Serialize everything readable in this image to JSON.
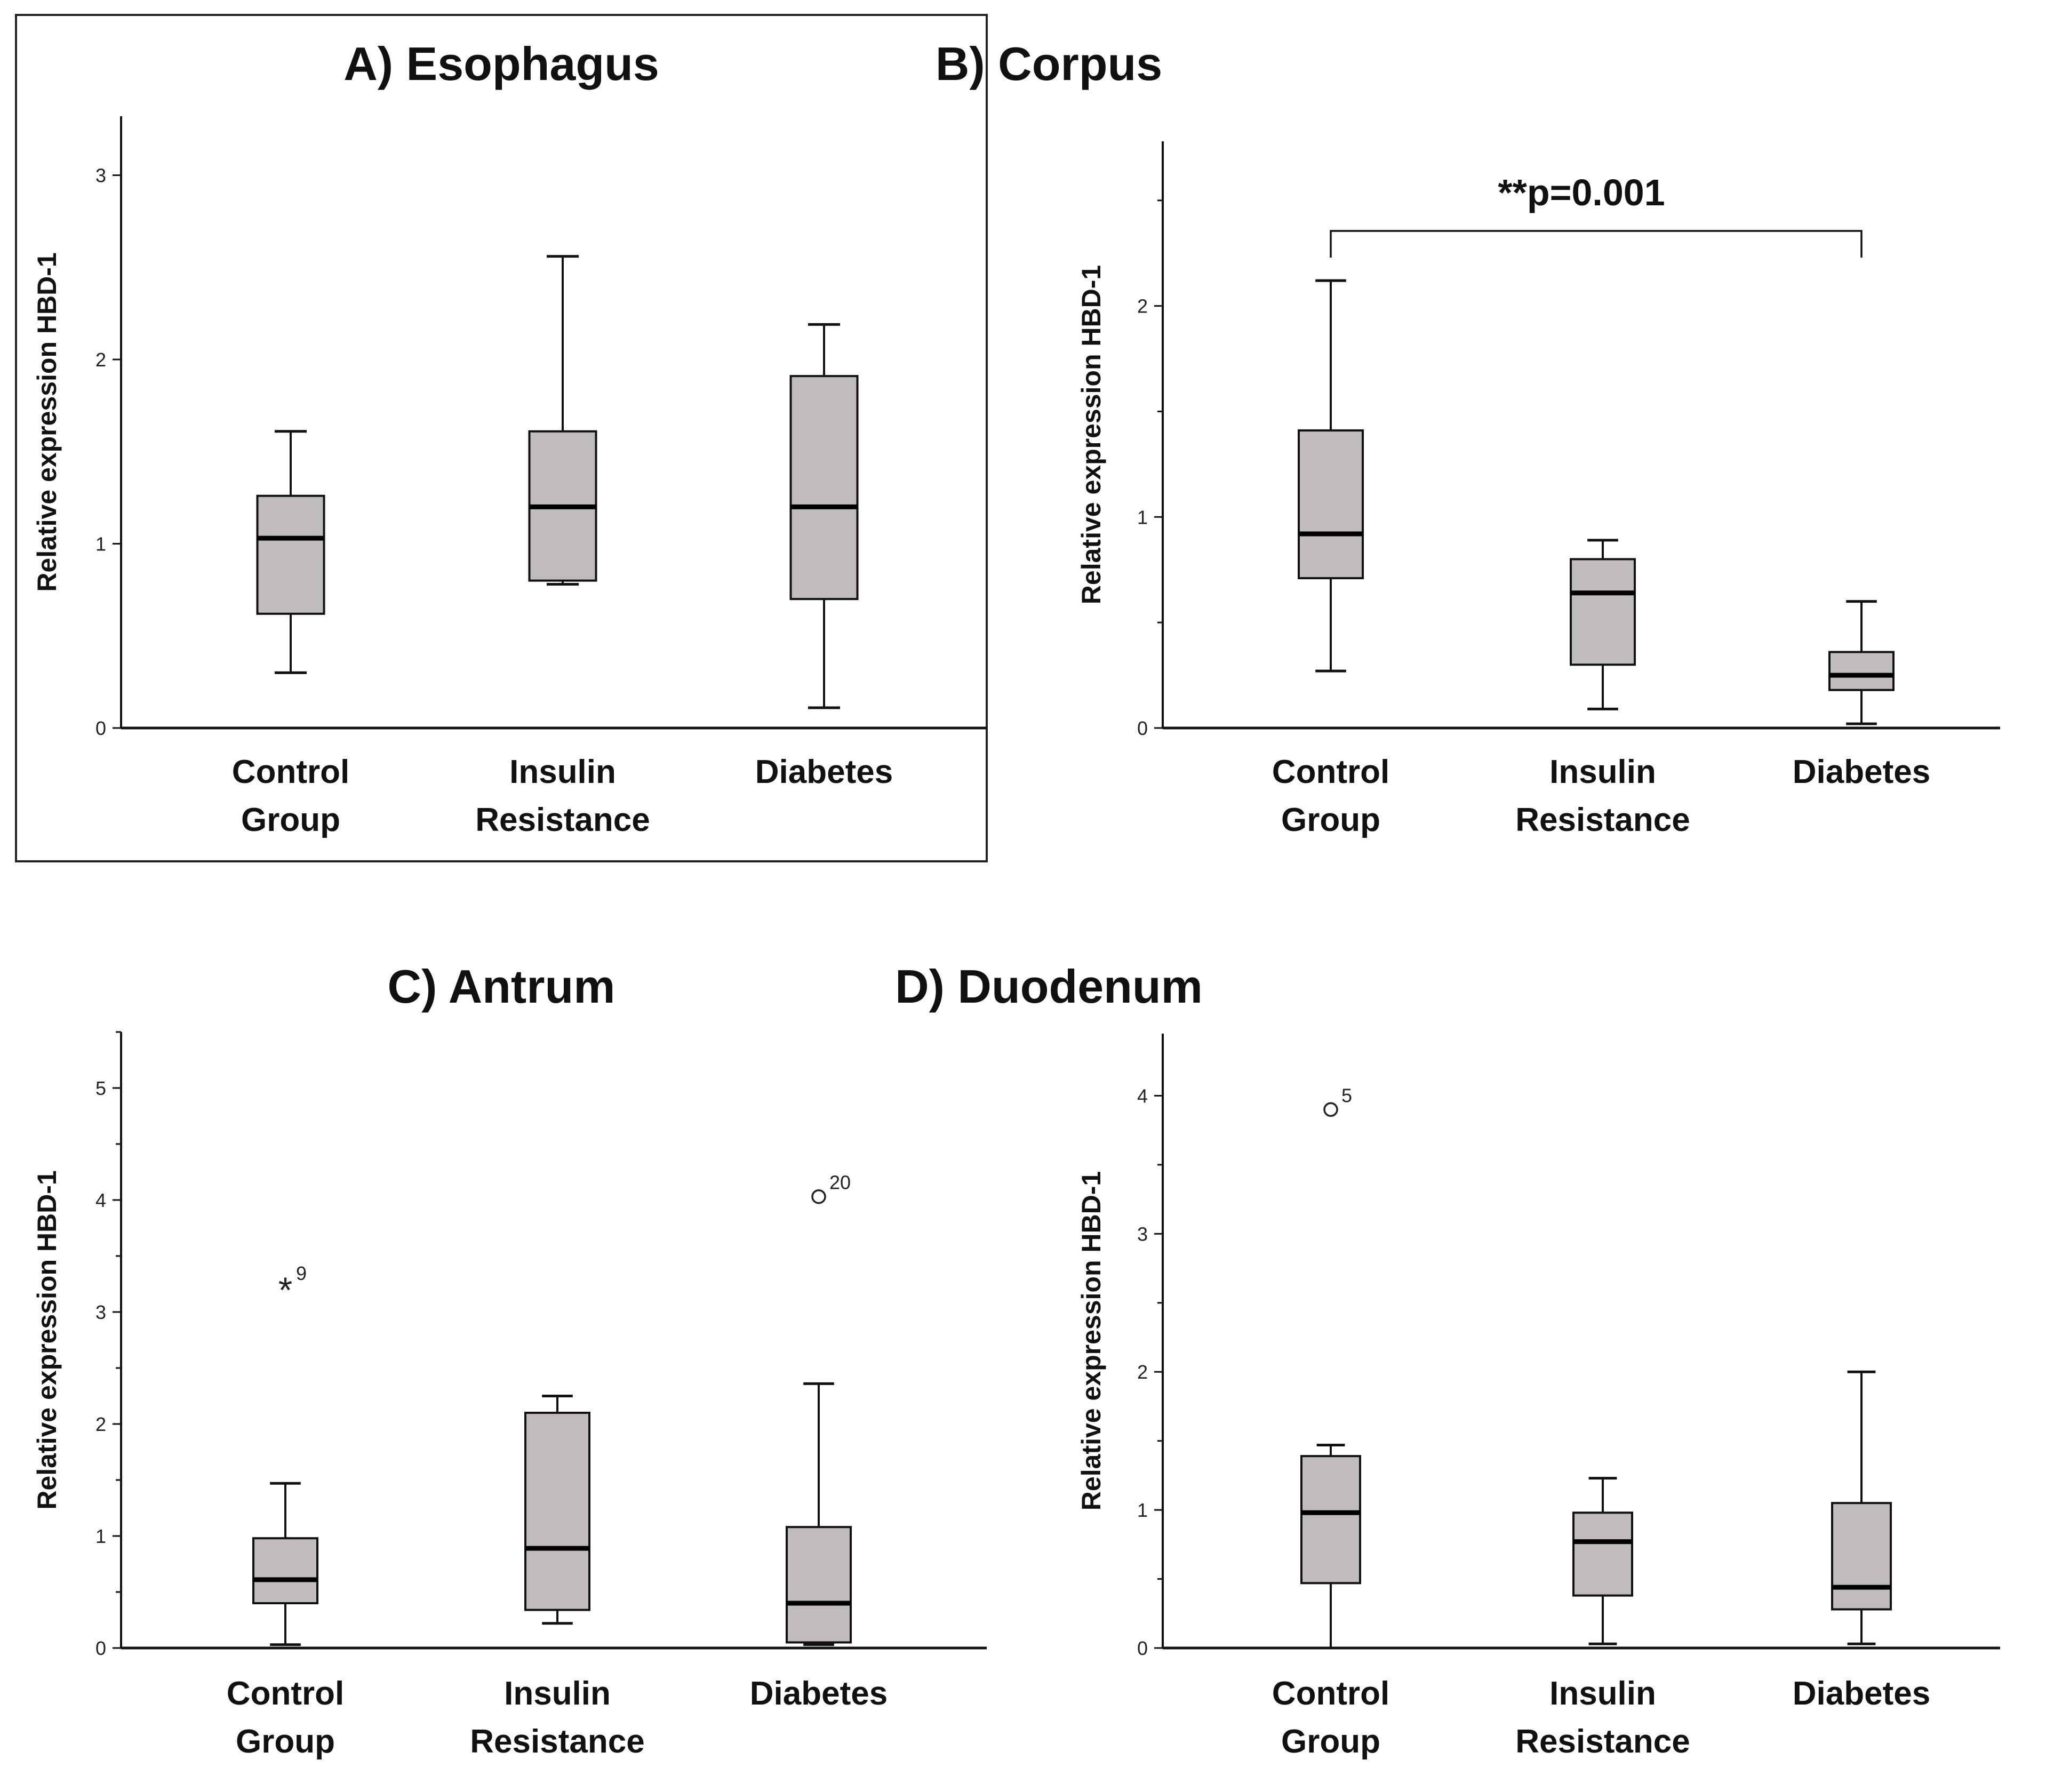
{
  "chart_data": [
    {
      "id": "A",
      "type": "boxplot",
      "title": "A)  Esophagus",
      "xlabel": "",
      "ylabel": "Relative expression HBD-1",
      "ylim": [
        0,
        3.32
      ],
      "yticks": [
        0,
        1,
        2,
        3
      ],
      "yticks_labeled": [
        0,
        1,
        2,
        3
      ],
      "categories": [
        [
          "Control",
          "Group"
        ],
        [
          "Insulin",
          "Resistance"
        ],
        [
          "Diabetes"
        ]
      ],
      "boxes": [
        {
          "whisker_low": 0.3,
          "q1": 0.62,
          "median": 1.03,
          "q3": 1.26,
          "whisker_high": 1.61,
          "outliers": []
        },
        {
          "whisker_low": 0.78,
          "q1": 0.8,
          "median": 1.2,
          "q3": 1.61,
          "whisker_high": 2.56,
          "outliers": []
        },
        {
          "whisker_low": 0.11,
          "q1": 0.7,
          "median": 1.2,
          "q3": 1.91,
          "whisker_high": 2.19,
          "outliers": []
        }
      ],
      "annotations": []
    },
    {
      "id": "B",
      "type": "boxplot",
      "title": "B)  Corpus",
      "xlabel": "",
      "ylabel": "Relative expression HBD-1",
      "ylim": [
        0,
        2.78
      ],
      "yticks": [
        0,
        0.5,
        1,
        1.5,
        2,
        2.5
      ],
      "yticks_labeled": [
        0,
        1,
        2
      ],
      "categories": [
        [
          "Control",
          "Group"
        ],
        [
          "Insulin",
          "Resistance"
        ],
        [
          "Diabetes"
        ]
      ],
      "boxes": [
        {
          "whisker_low": 0.27,
          "q1": 0.71,
          "median": 0.92,
          "q3": 1.41,
          "whisker_high": 2.12,
          "outliers": []
        },
        {
          "whisker_low": 0.09,
          "q1": 0.3,
          "median": 0.64,
          "q3": 0.8,
          "whisker_high": 0.89,
          "outliers": []
        },
        {
          "whisker_low": 0.02,
          "q1": 0.18,
          "median": 0.25,
          "q3": 0.36,
          "whisker_high": 0.6,
          "outliers": []
        }
      ],
      "annotations": [
        {
          "type": "bracket",
          "from": 0,
          "to": 2,
          "y": 2.35,
          "label": "**p=0.001"
        }
      ]
    },
    {
      "id": "C",
      "type": "boxplot",
      "title": "C)  Antrum",
      "xlabel": "",
      "ylabel": "Relative expression HBD-1",
      "ylim": [
        0,
        5.5
      ],
      "yticks": [
        0,
        0.5,
        1,
        1.5,
        2,
        2.5,
        3,
        3.5,
        4,
        4.5,
        5,
        5.5
      ],
      "yticks_labeled": [
        0,
        1,
        2,
        3,
        4,
        5
      ],
      "categories": [
        [
          "Control",
          "Group"
        ],
        [
          "Insulin",
          "Resistance"
        ],
        [
          "Diabetes"
        ]
      ],
      "boxes": [
        {
          "whisker_low": 0.03,
          "q1": 0.4,
          "median": 0.61,
          "q3": 0.98,
          "whisker_high": 1.47,
          "outliers": [
            {
              "value": 3.22,
              "marker": "star",
              "label": "9"
            }
          ]
        },
        {
          "whisker_low": 0.22,
          "q1": 0.34,
          "median": 0.89,
          "q3": 2.1,
          "whisker_high": 2.25,
          "outliers": []
        },
        {
          "whisker_low": 0.03,
          "q1": 0.05,
          "median": 0.4,
          "q3": 1.08,
          "whisker_high": 2.36,
          "outliers": [
            {
              "value": 4.03,
              "marker": "circle",
              "label": "20"
            }
          ]
        }
      ],
      "annotations": []
    },
    {
      "id": "D",
      "type": "boxplot",
      "title": "D)  Duodenum",
      "xlabel": "",
      "ylabel": "Relative expression HBD-1",
      "ylim": [
        0,
        4.45
      ],
      "yticks": [
        0,
        0.5,
        1,
        1.5,
        2,
        2.5,
        3,
        3.5,
        4
      ],
      "yticks_labeled": [
        0,
        1,
        2,
        3,
        4
      ],
      "categories": [
        [
          "Control",
          "Group"
        ],
        [
          "Insulin",
          "Resistance"
        ],
        [
          "Diabetes"
        ]
      ],
      "boxes": [
        {
          "whisker_low": 0.0,
          "q1": 0.47,
          "median": 0.98,
          "q3": 1.39,
          "whisker_high": 1.47,
          "outliers": [
            {
              "value": 3.9,
              "marker": "circle",
              "label": "5"
            }
          ]
        },
        {
          "whisker_low": 0.03,
          "q1": 0.38,
          "median": 0.77,
          "q3": 0.98,
          "whisker_high": 1.23,
          "outliers": []
        },
        {
          "whisker_low": 0.03,
          "q1": 0.28,
          "median": 0.44,
          "q3": 1.05,
          "whisker_high": 2.0,
          "outliers": []
        }
      ],
      "annotations": []
    }
  ]
}
